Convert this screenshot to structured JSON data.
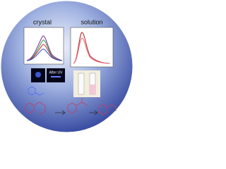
{
  "labels": {
    "left": "crystal",
    "right": "solution",
    "photo": "After UV"
  }
}
